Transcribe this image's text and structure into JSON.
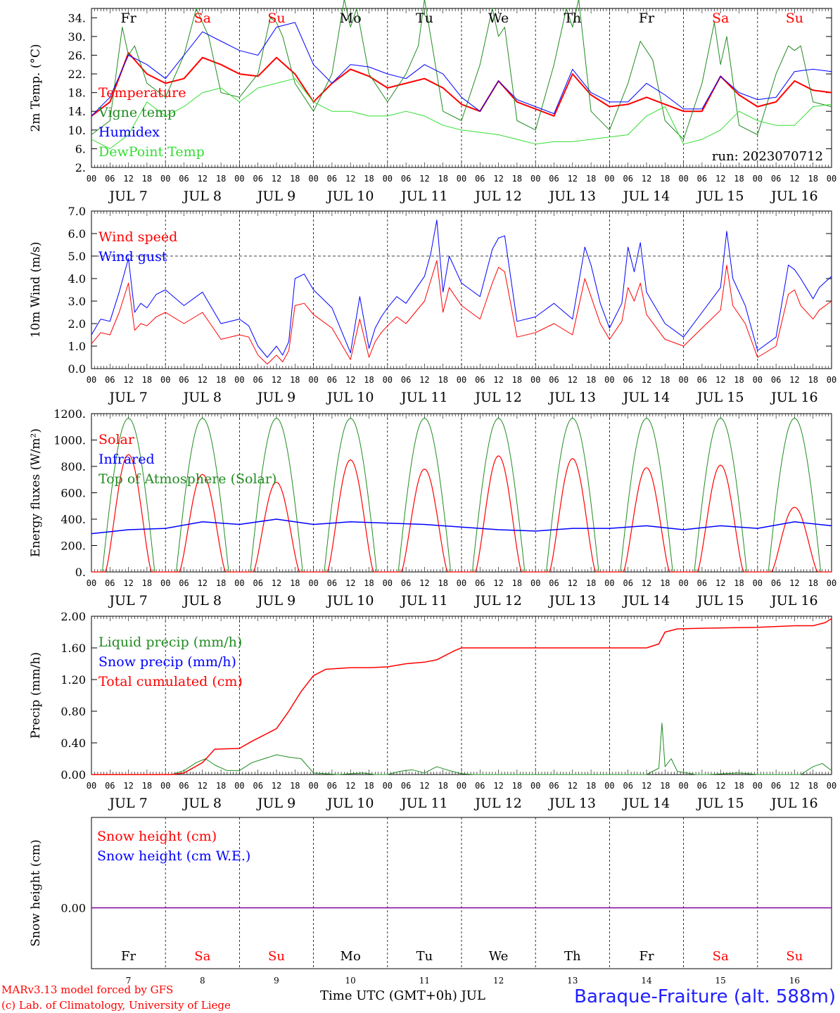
{
  "run_label": "run: 2023070712",
  "hour_ticks": [
    "00",
    "06",
    "12",
    "18"
  ],
  "days": [
    {
      "abbr": "Fr",
      "num": "7",
      "month": "JUL",
      "weekend": false
    },
    {
      "abbr": "Sa",
      "num": "8",
      "month": "JUL",
      "weekend": true
    },
    {
      "abbr": "Su",
      "num": "9",
      "month": "JUL",
      "weekend": true
    },
    {
      "abbr": "Mo",
      "num": "10",
      "month": "JUL",
      "weekend": false
    },
    {
      "abbr": "Tu",
      "num": "11",
      "month": "JUL",
      "weekend": false
    },
    {
      "abbr": "We",
      "num": "12",
      "month": "JUL",
      "weekend": false
    },
    {
      "abbr": "Th",
      "num": "13",
      "month": "JUL",
      "weekend": false
    },
    {
      "abbr": "Fr",
      "num": "14",
      "month": "JUL",
      "weekend": false
    },
    {
      "abbr": "Sa",
      "num": "15",
      "month": "JUL",
      "weekend": true
    },
    {
      "abbr": "Su",
      "num": "16",
      "month": "JUL",
      "weekend": true
    }
  ],
  "colors": {
    "red": "#ff0000",
    "green": "#228b22",
    "blue": "#0000ff",
    "lightgreen": "#33dd33",
    "purple": "#8000a0",
    "weekend": "#ff0000",
    "weekday": "#000000"
  },
  "footer": {
    "model": "MARv3.13 model forced by GFS",
    "lab": "(c) Lab. of Climatology, University of Liege",
    "xtitle": "Time UTC (GMT+0h) JUL",
    "station": "Baraque-Fraiture (alt. 588m)"
  },
  "chart_data": [
    {
      "id": "temp",
      "type": "line",
      "ylabel": "2m Temp. (°C)",
      "ylim": [
        2,
        36
      ],
      "yticks": [
        2,
        6,
        10,
        14,
        18,
        22,
        26,
        30,
        34
      ],
      "ytick_labels": [
        "2.",
        "6.",
        "10.",
        "14.",
        "18.",
        "22.",
        "26.",
        "30.",
        "34."
      ],
      "legend_placement": "left",
      "series": [
        {
          "name": "Temperature",
          "color": "red",
          "width": 2,
          "x": [
            0,
            6,
            12,
            18,
            24,
            30,
            36,
            42,
            48,
            54,
            60,
            66,
            72,
            78,
            84,
            90,
            96,
            102,
            108,
            114,
            120,
            126,
            132,
            138,
            144,
            150,
            156,
            162,
            168,
            174,
            180,
            186,
            192,
            198,
            204,
            210,
            216,
            222,
            228,
            234,
            240
          ],
          "y": [
            13,
            16,
            26.5,
            22,
            20,
            21,
            25.5,
            24,
            22,
            21.5,
            25.5,
            22,
            16,
            20,
            23,
            21.5,
            19,
            20,
            21,
            19,
            15.5,
            14,
            20.5,
            16,
            14.5,
            13,
            22,
            17.5,
            15,
            15.5,
            17,
            15.5,
            14,
            14,
            21.5,
            17.5,
            15,
            16,
            20.5,
            18.5,
            18
          ]
        },
        {
          "name": "Vigne temp",
          "color": "green",
          "width": 1,
          "x": [
            0,
            6,
            10,
            12,
            14,
            18,
            24,
            30,
            34,
            36,
            38,
            42,
            48,
            54,
            58,
            60,
            62,
            66,
            72,
            78,
            82,
            84,
            86,
            90,
            96,
            102,
            106,
            108,
            110,
            114,
            120,
            126,
            130,
            132,
            134,
            138,
            144,
            150,
            154,
            156,
            158,
            162,
            168,
            174,
            178,
            180,
            182,
            186,
            192,
            198,
            202,
            204,
            206,
            210,
            216,
            222,
            226,
            228,
            230,
            234,
            240
          ],
          "y": [
            9,
            12,
            32,
            26,
            28,
            20,
            17,
            26,
            36,
            33,
            30,
            18,
            17,
            22,
            34,
            33,
            30,
            20,
            14,
            22,
            38,
            32,
            36,
            22,
            16,
            22,
            28,
            38,
            30,
            14,
            12,
            24,
            36,
            30,
            32,
            12,
            10,
            24,
            36,
            32,
            38,
            14,
            10,
            20,
            29,
            27,
            25,
            12,
            8,
            20,
            33,
            24,
            30,
            11,
            9,
            22,
            28,
            27,
            28,
            16,
            15
          ]
        },
        {
          "name": "Humidex",
          "color": "blue",
          "width": 1,
          "x": [
            0,
            6,
            12,
            18,
            24,
            30,
            36,
            42,
            48,
            54,
            60,
            66,
            72,
            78,
            84,
            90,
            96,
            102,
            108,
            114,
            120,
            126,
            132,
            138,
            144,
            150,
            156,
            162,
            168,
            174,
            180,
            186,
            192,
            198,
            204,
            210,
            216,
            222,
            228,
            234,
            240
          ],
          "y": [
            13,
            17,
            26,
            24,
            21,
            26,
            31,
            29,
            27,
            26,
            32,
            33,
            24,
            20,
            24,
            23.5,
            22,
            21,
            24,
            22,
            17,
            14,
            20.5,
            16.5,
            15,
            13.5,
            23,
            18,
            16,
            16,
            20,
            17.5,
            14.5,
            14.5,
            21.5,
            18,
            16.5,
            17,
            22.5,
            23,
            22.5
          ]
        },
        {
          "name": "DewPoint Temp",
          "color": "lightgreen",
          "width": 1,
          "x": [
            0,
            6,
            12,
            18,
            24,
            30,
            36,
            42,
            48,
            54,
            60,
            66,
            72,
            78,
            84,
            90,
            96,
            102,
            108,
            114,
            120,
            126,
            132,
            138,
            144,
            150,
            156,
            162,
            168,
            174,
            180,
            186,
            192,
            198,
            204,
            210,
            216,
            222,
            228,
            234,
            240
          ],
          "y": [
            8,
            6,
            9,
            16,
            13,
            15,
            18,
            19,
            16,
            19,
            20,
            21,
            16,
            14,
            14,
            13,
            13,
            14,
            13,
            11,
            10,
            9.5,
            9,
            8,
            7,
            7.5,
            7.5,
            8,
            8.5,
            9,
            13,
            15,
            7,
            8,
            10,
            14,
            12,
            11,
            11,
            15,
            15.5
          ]
        }
      ]
    },
    {
      "id": "wind",
      "type": "line",
      "ylabel": "10m Wind (m/s)",
      "ylim": [
        0,
        7
      ],
      "yticks": [
        0,
        1,
        2,
        3,
        4,
        5,
        6,
        7
      ],
      "ytick_labels": [
        "0.0",
        "1.0",
        "2.0",
        "3.0",
        "4.0",
        "5.0",
        "6.0",
        "7.0"
      ],
      "hline": 5,
      "legend_placement": "left",
      "series": [
        {
          "name": "Wind speed",
          "color": "red",
          "width": 1,
          "x": [
            0,
            3,
            6,
            9,
            12,
            14,
            16,
            18,
            21,
            24,
            30,
            36,
            42,
            48,
            51,
            54,
            57,
            60,
            62,
            64,
            66,
            69,
            72,
            78,
            84,
            87,
            90,
            92,
            94,
            96,
            99,
            102,
            108,
            112,
            114,
            116,
            120,
            126,
            130,
            132,
            134,
            138,
            144,
            150,
            156,
            160,
            162,
            165,
            168,
            172,
            174,
            176,
            178,
            180,
            186,
            192,
            198,
            204,
            206,
            208,
            212,
            216,
            222,
            226,
            228,
            230,
            234,
            236,
            240
          ],
          "y": [
            1.1,
            1.6,
            1.5,
            2.5,
            3.8,
            1.7,
            2.0,
            1.9,
            2.3,
            2.5,
            2.0,
            2.5,
            1.3,
            1.5,
            1.4,
            0.6,
            0.2,
            0.6,
            0.3,
            0.8,
            2.8,
            2.9,
            2.4,
            1.8,
            0.4,
            2.2,
            0.5,
            1.2,
            1.6,
            1.9,
            2.3,
            2.0,
            3.0,
            4.8,
            2.5,
            3.6,
            2.8,
            2.2,
            3.8,
            4.5,
            4.3,
            1.4,
            1.6,
            2.0,
            1.5,
            4.0,
            3.2,
            2.0,
            1.3,
            2.1,
            3.6,
            3.0,
            3.8,
            2.4,
            1.3,
            1.0,
            1.8,
            2.6,
            4.6,
            2.8,
            2.0,
            0.5,
            1.0,
            3.3,
            3.5,
            2.8,
            2.2,
            2.6,
            3.0
          ]
        },
        {
          "name": "Wind gust",
          "color": "blue",
          "width": 1,
          "x": [
            0,
            3,
            6,
            9,
            12,
            14,
            16,
            18,
            21,
            24,
            30,
            36,
            42,
            48,
            51,
            54,
            57,
            60,
            62,
            64,
            66,
            69,
            72,
            78,
            84,
            87,
            90,
            92,
            94,
            96,
            99,
            102,
            108,
            110,
            112,
            114,
            116,
            120,
            126,
            130,
            132,
            134,
            138,
            144,
            150,
            156,
            160,
            162,
            165,
            168,
            172,
            174,
            176,
            178,
            180,
            186,
            192,
            198,
            204,
            206,
            208,
            212,
            216,
            222,
            226,
            228,
            230,
            234,
            236,
            240
          ],
          "y": [
            1.5,
            2.2,
            2.1,
            3.4,
            4.9,
            2.5,
            2.9,
            2.7,
            3.3,
            3.5,
            2.8,
            3.4,
            2.0,
            2.2,
            1.9,
            1.0,
            0.5,
            1.0,
            0.6,
            1.2,
            4.0,
            4.2,
            3.5,
            2.7,
            0.7,
            3.2,
            0.9,
            1.8,
            2.3,
            2.7,
            3.2,
            2.9,
            4.1,
            5.1,
            6.6,
            3.4,
            5.0,
            3.8,
            3.2,
            5.3,
            5.8,
            5.9,
            2.1,
            2.3,
            2.9,
            2.2,
            5.4,
            4.6,
            2.9,
            1.8,
            2.9,
            5.4,
            4.3,
            5.6,
            3.4,
            2.0,
            1.4,
            2.5,
            3.6,
            6.1,
            4.0,
            2.8,
            0.8,
            1.4,
            4.6,
            4.4,
            4.0,
            3.1,
            3.6,
            4.1
          ]
        }
      ]
    },
    {
      "id": "energy",
      "type": "line",
      "ylabel": "Energy fluxes (W/m²)",
      "ylim": [
        0,
        1200
      ],
      "yticks": [
        0,
        200,
        400,
        600,
        800,
        1000,
        1200
      ],
      "ytick_labels": [
        "0.",
        "200.",
        "400.",
        "600.",
        "800.",
        "1000.",
        "1200."
      ],
      "legend_placement": "left",
      "daily_solar_peaks": [
        890,
        740,
        680,
        850,
        780,
        880,
        860,
        790,
        810,
        490
      ],
      "toa_solar_peak": 1165,
      "series": [
        {
          "name": "Solar",
          "color": "red",
          "width": 1
        },
        {
          "name": "Infrared",
          "color": "blue",
          "width": 1.5,
          "x": [
            0,
            12,
            24,
            36,
            48,
            60,
            72,
            84,
            96,
            108,
            120,
            132,
            144,
            156,
            168,
            180,
            192,
            204,
            216,
            228,
            240
          ],
          "y": [
            290,
            320,
            330,
            380,
            360,
            400,
            360,
            380,
            370,
            360,
            340,
            320,
            310,
            330,
            330,
            350,
            320,
            350,
            330,
            380,
            350
          ]
        },
        {
          "name": "Top of Atmosphere (Solar)",
          "color": "green",
          "width": 1
        }
      ]
    },
    {
      "id": "precip",
      "type": "line",
      "ylabel": "Precip (mm/h)",
      "ylim": [
        0,
        2
      ],
      "yticks": [
        0,
        0.4,
        0.8,
        1.2,
        1.6,
        2.0
      ],
      "ytick_labels": [
        "0.00",
        "0.40",
        "0.80",
        "1.20",
        "1.60",
        "2.00"
      ],
      "legend_placement": "left",
      "series": [
        {
          "name": "Liquid precip (mm/h)",
          "color": "green",
          "width": 1,
          "x": [
            0,
            26,
            30,
            34,
            37,
            40,
            44,
            48,
            52,
            56,
            60,
            64,
            68,
            72,
            76,
            80,
            84,
            88,
            92,
            96,
            100,
            104,
            108,
            112,
            116,
            120,
            124,
            150,
            180,
            184,
            185,
            186,
            188,
            190,
            196,
            200,
            210,
            216,
            230,
            234,
            237,
            240
          ],
          "y": [
            0,
            0,
            0.05,
            0.15,
            0.2,
            0.12,
            0.05,
            0.05,
            0.15,
            0.2,
            0.25,
            0.22,
            0.2,
            0.02,
            0.01,
            0,
            0.01,
            0.02,
            0,
            0,
            0.04,
            0.06,
            0.02,
            0.1,
            0.05,
            0.01,
            0,
            0,
            0,
            0.08,
            0.65,
            0.1,
            0.2,
            0.04,
            0,
            0,
            0.02,
            0,
            0,
            0.1,
            0.14,
            0.05
          ]
        },
        {
          "name": "Snow precip (mm/h)",
          "color": "blue",
          "width": 1,
          "x": [],
          "y": []
        },
        {
          "name": "Total cumulated (cm)",
          "color": "red",
          "width": 1.5,
          "x": [
            0,
            26,
            30,
            36,
            40,
            48,
            52,
            56,
            60,
            64,
            68,
            72,
            76,
            84,
            90,
            96,
            102,
            108,
            112,
            118,
            120,
            132,
            150,
            168,
            180,
            184,
            186,
            190,
            200,
            216,
            228,
            234,
            238,
            240
          ],
          "y": [
            0,
            0,
            0.02,
            0.15,
            0.32,
            0.33,
            0.42,
            0.5,
            0.58,
            0.8,
            1.05,
            1.25,
            1.33,
            1.35,
            1.35,
            1.36,
            1.4,
            1.42,
            1.45,
            1.57,
            1.6,
            1.6,
            1.6,
            1.6,
            1.6,
            1.65,
            1.8,
            1.84,
            1.85,
            1.86,
            1.88,
            1.88,
            1.92,
            1.97
          ]
        }
      ]
    },
    {
      "id": "snow",
      "type": "line",
      "ylabel": "Snow height (cm)",
      "yticks": [
        0
      ],
      "ytick_labels": [
        "0.00"
      ],
      "zero_line": 0,
      "legend_placement": "left",
      "series": [
        {
          "name": "Snow height (cm)",
          "color": "red"
        },
        {
          "name": "Snow height (cm W.E.)",
          "color": "blue"
        }
      ]
    }
  ]
}
